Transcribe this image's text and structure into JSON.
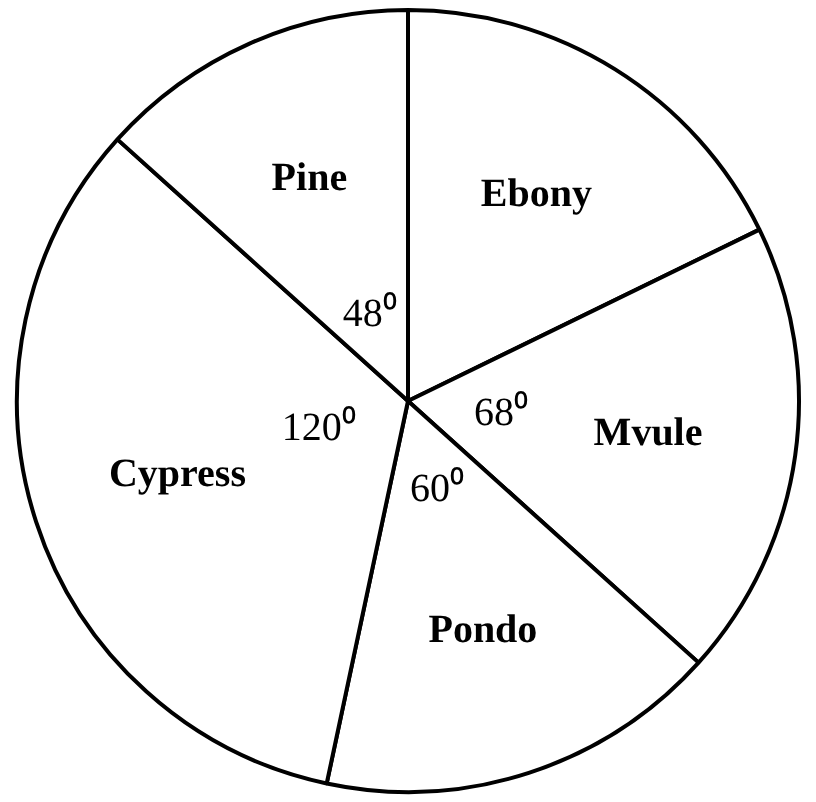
{
  "chart_data": {
    "type": "pie",
    "categories": [
      "Ebony",
      "Mvule",
      "Pondo",
      "Cypress",
      "Pine"
    ],
    "values": [
      64,
      68,
      60,
      120,
      48
    ],
    "colors": [
      "#ffffff",
      "#ffffff",
      "#ffffff",
      "#ffffff",
      "#ffffff"
    ],
    "value_labels": [
      null,
      "68⁰",
      "60⁰",
      "120⁰",
      "48⁰"
    ]
  }
}
